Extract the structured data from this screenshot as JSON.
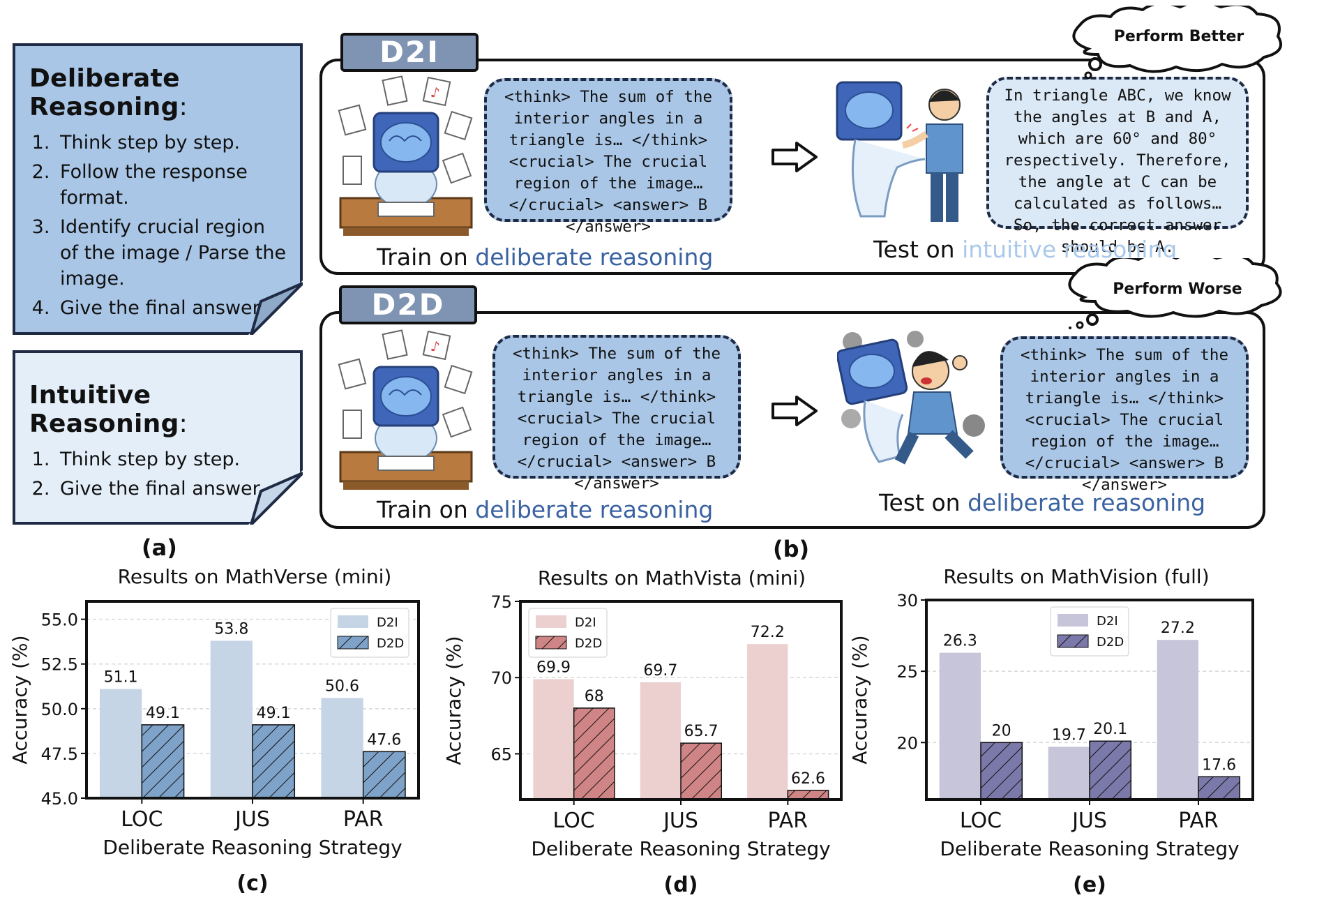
{
  "panel_a": {
    "deliberate": {
      "title": "Deliberate Reasoning",
      "colon": ":",
      "items": [
        "Think step by step.",
        "Follow the response format.",
        "Identify crucial region of the image / Parse the image.",
        "Give the final answer."
      ]
    },
    "intuitive": {
      "title": "Intuitive Reasoning",
      "colon": ":",
      "items": [
        "Think step by step.",
        "Give the final answer."
      ]
    },
    "label": "(a)"
  },
  "panel_b": {
    "label": "(b)",
    "d2i": {
      "tag": "D2I",
      "train_bubble": "<think> The sum of the interior angles in a triangle is… </think> <crucial> The crucial region of the image… </crucial> <answer> B </answer>",
      "test_bubble": "In triangle ABC, we know the angles at B and A, which are 60° and 80° respectively. Therefore, the angle at C can be calculated as follows… So, the correct answer should be A.",
      "train_caption_prefix": "Train on ",
      "train_caption_highlight": "deliberate reasoning",
      "test_caption_prefix": "Test on ",
      "test_caption_highlight": "intuitive reasoning",
      "thought": "Perform Better"
    },
    "d2d": {
      "tag": "D2D",
      "train_bubble": "<think> The sum of the interior angles in a triangle is… </think> <crucial> The crucial region of the image… </crucial> <answer> B </answer>",
      "test_bubble": "<think> The sum of the interior angles in a triangle is… </think> <crucial> The crucial region of the image… </crucial> <answer> B </answer>",
      "train_caption_prefix": "Train on ",
      "train_caption_highlight": "deliberate reasoning",
      "test_caption_prefix": "Test on ",
      "test_caption_highlight": "deliberate reasoning",
      "thought": "Perform Worse"
    },
    "colors": {
      "accent_dark": "#3a62a1",
      "accent_light": "#a9c8ea",
      "bubble": "#a9c6e6"
    }
  },
  "chart_data": [
    {
      "type": "bar",
      "panel": "(c)",
      "title": "Results on MathVerse (mini)",
      "xlabel": "Deliberate Reasoning Strategy",
      "ylabel": "Accuracy (%)",
      "categories": [
        "LOC",
        "JUS",
        "PAR"
      ],
      "ylim": [
        45.0,
        56.0
      ],
      "yticks": [
        "45.0",
        "47.5",
        "50.0",
        "52.5",
        "55.0"
      ],
      "grid": true,
      "legend_position": "top-right",
      "series": [
        {
          "name": "D2I",
          "values": [
            51.1,
            53.8,
            50.6
          ],
          "labels": [
            "51.1",
            "53.8",
            "50.6"
          ],
          "color": "#c5d5e6",
          "hatch": false
        },
        {
          "name": "D2D",
          "values": [
            49.1,
            49.1,
            47.6
          ],
          "labels": [
            "49.1",
            "49.1",
            "47.6"
          ],
          "color": "#7ea2c8",
          "hatch": true
        }
      ]
    },
    {
      "type": "bar",
      "panel": "(d)",
      "title": "Results on MathVista (mini)",
      "xlabel": "Deliberate Reasoning Strategy",
      "ylabel": "Accuracy (%)",
      "categories": [
        "LOC",
        "JUS",
        "PAR"
      ],
      "ylim": [
        62,
        75
      ],
      "yticks": [
        "65",
        "70",
        "75"
      ],
      "grid": true,
      "legend_position": "top-left",
      "series": [
        {
          "name": "D2I",
          "values": [
            69.9,
            69.7,
            72.2
          ],
          "labels": [
            "69.9",
            "69.7",
            "72.2"
          ],
          "color": "#ecd0d0",
          "hatch": false
        },
        {
          "name": "D2D",
          "values": [
            68,
            65.7,
            62.6
          ],
          "labels": [
            "68",
            "65.7",
            "62.6"
          ],
          "color": "#cf8585",
          "hatch": true
        }
      ]
    },
    {
      "type": "bar",
      "panel": "(e)",
      "title": "Results on MathVision (full)",
      "xlabel": "Deliberate Reasoning Strategy",
      "ylabel": "Accuracy (%)",
      "categories": [
        "LOC",
        "JUS",
        "PAR"
      ],
      "ylim": [
        16,
        30
      ],
      "yticks": [
        "20",
        "25",
        "30"
      ],
      "grid": true,
      "legend_position": "top-center",
      "series": [
        {
          "name": "D2I",
          "values": [
            26.3,
            19.7,
            27.2
          ],
          "labels": [
            "26.3",
            "19.7",
            "27.2"
          ],
          "color": "#c6c5d9",
          "hatch": false
        },
        {
          "name": "D2D",
          "values": [
            20,
            20.1,
            17.6
          ],
          "labels": [
            "20",
            "20.1",
            "17.6"
          ],
          "color": "#7b78aa",
          "hatch": true
        }
      ]
    }
  ]
}
